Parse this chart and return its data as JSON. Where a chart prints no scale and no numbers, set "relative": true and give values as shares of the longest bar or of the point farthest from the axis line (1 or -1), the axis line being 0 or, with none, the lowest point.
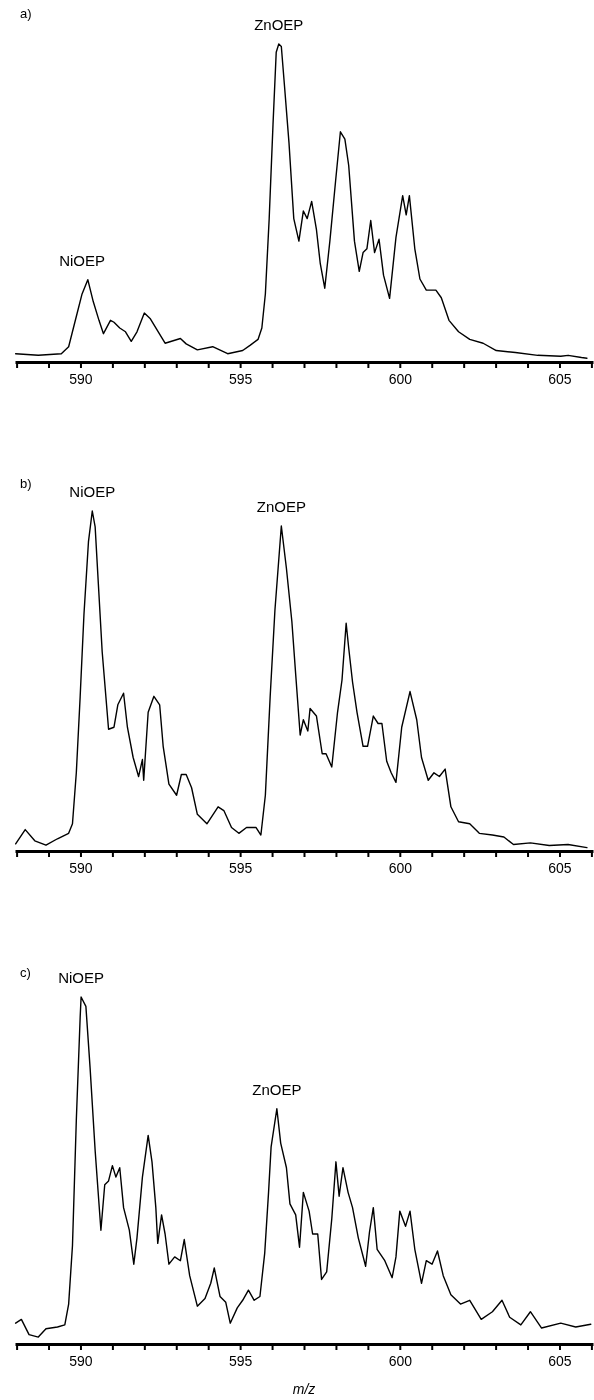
{
  "chart_data": [
    {
      "type": "line",
      "title": "a)",
      "relative": true,
      "color": "#000000",
      "xlim": [
        587.95,
        606.05
      ],
      "xticks": [
        {
          "value": 588,
          "label": null
        },
        {
          "value": 589,
          "label": null
        },
        590,
        {
          "value": 591,
          "label": null
        },
        {
          "value": 592,
          "label": null
        },
        {
          "value": 593,
          "label": null
        },
        {
          "value": 594,
          "label": null
        },
        595,
        {
          "value": 596,
          "label": null
        },
        {
          "value": 597,
          "label": null
        },
        {
          "value": 598,
          "label": null
        },
        {
          "value": 599,
          "label": null
        },
        600,
        {
          "value": 601,
          "label": null
        },
        {
          "value": 602,
          "label": null
        },
        {
          "value": 603,
          "label": null
        },
        {
          "value": 604,
          "label": null
        },
        605,
        {
          "value": 606,
          "label": null
        }
      ],
      "annotations": [
        {
          "text": "NiOEP",
          "x": 590.05,
          "y": 0.259
        },
        {
          "text": "ZnOEP",
          "x": 596.21,
          "y": 1
        }
      ],
      "x": [
        587.97,
        588.68,
        589.4,
        589.63,
        589.87,
        590.05,
        590.23,
        590.4,
        590.58,
        590.72,
        590.94,
        591.05,
        591.23,
        591.41,
        591.59,
        591.77,
        592.0,
        592.18,
        592.36,
        592.65,
        593.13,
        593.31,
        593.66,
        594.14,
        594.61,
        595.08,
        595.32,
        595.56,
        595.68,
        595.79,
        595.91,
        596.03,
        596.13,
        596.21,
        596.29,
        596.39,
        596.53,
        596.68,
        596.84,
        596.98,
        597.1,
        597.24,
        597.39,
        597.51,
        597.65,
        597.81,
        597.99,
        598.14,
        598.28,
        598.4,
        598.58,
        598.73,
        598.85,
        598.97,
        599.09,
        599.21,
        599.35,
        599.49,
        599.68,
        599.88,
        600.09,
        600.2,
        600.3,
        600.47,
        600.63,
        600.83,
        601.13,
        601.3,
        601.54,
        601.84,
        602.19,
        602.61,
        603.02,
        603.62,
        604.32,
        605.04,
        605.27,
        605.69,
        605.86
      ],
      "values": [
        0.026,
        0.021,
        0.026,
        0.048,
        0.143,
        0.214,
        0.259,
        0.19,
        0.131,
        0.089,
        0.131,
        0.125,
        0.107,
        0.095,
        0.065,
        0.095,
        0.154,
        0.137,
        0.107,
        0.059,
        0.074,
        0.057,
        0.038,
        0.048,
        0.026,
        0.036,
        0.053,
        0.071,
        0.107,
        0.214,
        0.451,
        0.748,
        0.974,
        1,
        0.992,
        0.867,
        0.689,
        0.451,
        0.38,
        0.475,
        0.451,
        0.505,
        0.416,
        0.309,
        0.232,
        0.38,
        0.57,
        0.724,
        0.701,
        0.618,
        0.38,
        0.285,
        0.344,
        0.356,
        0.445,
        0.344,
        0.386,
        0.273,
        0.2,
        0.392,
        0.523,
        0.463,
        0.523,
        0.356,
        0.261,
        0.226,
        0.226,
        0.202,
        0.131,
        0.095,
        0.071,
        0.059,
        0.036,
        0.03,
        0.021,
        0.018,
        0.021,
        0.014,
        0.012
      ]
    },
    {
      "type": "line",
      "title": "b)",
      "relative": true,
      "color": "#000000",
      "xlim": [
        587.95,
        606.05
      ],
      "xticks": [
        {
          "value": 588,
          "label": null
        },
        {
          "value": 589,
          "label": null
        },
        590,
        {
          "value": 591,
          "label": null
        },
        {
          "value": 592,
          "label": null
        },
        {
          "value": 593,
          "label": null
        },
        {
          "value": 594,
          "label": null
        },
        595,
        {
          "value": 596,
          "label": null
        },
        {
          "value": 597,
          "label": null
        },
        {
          "value": 598,
          "label": null
        },
        {
          "value": 599,
          "label": null
        },
        600,
        {
          "value": 601,
          "label": null
        },
        {
          "value": 602,
          "label": null
        },
        {
          "value": 603,
          "label": null
        },
        {
          "value": 604,
          "label": null
        },
        605,
        {
          "value": 606,
          "label": null
        }
      ],
      "annotations": [
        {
          "text": "NiOEP",
          "x": 590.37,
          "y": 1
        },
        {
          "text": "ZnOEP",
          "x": 596.29,
          "y": 0.956
        }
      ],
      "x": [
        587.97,
        588.27,
        588.57,
        588.92,
        589.28,
        589.63,
        589.75,
        589.87,
        589.99,
        590.11,
        590.25,
        590.37,
        590.46,
        590.56,
        590.68,
        590.88,
        591.05,
        591.17,
        591.35,
        591.47,
        591.65,
        591.82,
        591.94,
        591.98,
        592.12,
        592.3,
        592.48,
        592.59,
        592.77,
        593.01,
        593.16,
        593.31,
        593.48,
        593.66,
        593.96,
        594.31,
        594.49,
        594.73,
        594.96,
        595.2,
        595.5,
        595.65,
        595.79,
        595.94,
        596.09,
        596.29,
        596.45,
        596.62,
        596.74,
        596.88,
        596.98,
        597.12,
        597.19,
        597.39,
        597.57,
        597.69,
        597.87,
        598.05,
        598.19,
        598.32,
        598.4,
        598.52,
        598.66,
        598.85,
        598.99,
        599.17,
        599.32,
        599.44,
        599.59,
        599.73,
        599.88,
        600.06,
        600.32,
        600.53,
        600.68,
        600.89,
        601.07,
        601.24,
        601.42,
        601.6,
        601.84,
        602.19,
        602.49,
        602.9,
        603.26,
        603.56,
        604.09,
        604.68,
        605.27,
        605.86
      ],
      "values": [
        0.021,
        0.063,
        0.03,
        0.017,
        0.036,
        0.052,
        0.08,
        0.23,
        0.453,
        0.697,
        0.909,
        1,
        0.953,
        0.786,
        0.586,
        0.358,
        0.364,
        0.43,
        0.464,
        0.364,
        0.275,
        0.219,
        0.269,
        0.208,
        0.408,
        0.455,
        0.43,
        0.308,
        0.197,
        0.164,
        0.225,
        0.225,
        0.186,
        0.108,
        0.08,
        0.13,
        0.119,
        0.069,
        0.052,
        0.069,
        0.069,
        0.047,
        0.164,
        0.453,
        0.709,
        0.956,
        0.831,
        0.675,
        0.519,
        0.341,
        0.386,
        0.353,
        0.419,
        0.397,
        0.286,
        0.286,
        0.247,
        0.408,
        0.503,
        0.67,
        0.597,
        0.497,
        0.408,
        0.308,
        0.308,
        0.397,
        0.375,
        0.375,
        0.264,
        0.23,
        0.202,
        0.364,
        0.469,
        0.386,
        0.275,
        0.208,
        0.23,
        0.219,
        0.241,
        0.13,
        0.086,
        0.08,
        0.052,
        0.047,
        0.041,
        0.019,
        0.024,
        0.016,
        0.019,
        0.01
      ]
    },
    {
      "type": "line",
      "title": "c)",
      "xlabel": "m/z",
      "relative": true,
      "color": "#000000",
      "xlim": [
        587.95,
        606.05
      ],
      "xticks": [
        {
          "value": 588,
          "label": null
        },
        {
          "value": 589,
          "label": null
        },
        590,
        {
          "value": 591,
          "label": null
        },
        {
          "value": 592,
          "label": null
        },
        {
          "value": 593,
          "label": null
        },
        {
          "value": 594,
          "label": null
        },
        595,
        {
          "value": 596,
          "label": null
        },
        {
          "value": 597,
          "label": null
        },
        {
          "value": 598,
          "label": null
        },
        {
          "value": 599,
          "label": null
        },
        600,
        {
          "value": 601,
          "label": null
        },
        {
          "value": 602,
          "label": null
        },
        {
          "value": 603,
          "label": null
        },
        {
          "value": 604,
          "label": null
        },
        605,
        {
          "value": 606,
          "label": null
        }
      ],
      "annotations": [
        {
          "text": "NiOEP",
          "x": 590.02,
          "y": 1
        },
        {
          "text": "ZnOEP",
          "x": 596.15,
          "y": 0.678
        }
      ],
      "x": [
        587.97,
        588.15,
        588.39,
        588.68,
        588.92,
        589.28,
        589.51,
        589.63,
        589.75,
        589.87,
        589.99,
        590.02,
        590.17,
        590.3,
        590.46,
        590.64,
        590.76,
        590.88,
        591.0,
        591.11,
        591.23,
        591.35,
        591.53,
        591.67,
        591.77,
        591.94,
        592.12,
        592.24,
        592.36,
        592.42,
        592.54,
        592.65,
        592.77,
        592.95,
        593.13,
        593.25,
        593.42,
        593.66,
        593.9,
        594.08,
        594.19,
        594.37,
        594.55,
        594.69,
        594.91,
        595.08,
        595.26,
        595.44,
        595.62,
        595.77,
        595.89,
        595.97,
        596.15,
        596.27,
        596.45,
        596.56,
        596.74,
        596.86,
        596.98,
        597.16,
        597.27,
        597.43,
        597.55,
        597.71,
        597.87,
        598.0,
        598.1,
        598.22,
        598.38,
        598.52,
        598.7,
        598.93,
        599.05,
        599.17,
        599.29,
        599.53,
        599.76,
        599.88,
        600.0,
        600.18,
        600.32,
        600.47,
        600.68,
        600.83,
        601.01,
        601.18,
        601.36,
        601.6,
        601.9,
        602.19,
        602.55,
        602.9,
        603.2,
        603.44,
        603.79,
        604.09,
        604.44,
        605.04,
        605.51,
        605.98
      ],
      "values": [
        0.06,
        0.071,
        0.027,
        0.02,
        0.044,
        0.049,
        0.055,
        0.115,
        0.284,
        0.645,
        0.94,
        1,
        0.973,
        0.798,
        0.557,
        0.328,
        0.459,
        0.47,
        0.514,
        0.481,
        0.508,
        0.393,
        0.328,
        0.23,
        0.306,
        0.481,
        0.601,
        0.525,
        0.393,
        0.29,
        0.372,
        0.317,
        0.23,
        0.251,
        0.24,
        0.301,
        0.197,
        0.109,
        0.131,
        0.175,
        0.219,
        0.137,
        0.12,
        0.06,
        0.104,
        0.126,
        0.155,
        0.126,
        0.137,
        0.262,
        0.437,
        0.568,
        0.678,
        0.579,
        0.508,
        0.404,
        0.372,
        0.279,
        0.437,
        0.383,
        0.317,
        0.317,
        0.186,
        0.208,
        0.361,
        0.525,
        0.426,
        0.508,
        0.437,
        0.393,
        0.306,
        0.224,
        0.322,
        0.393,
        0.273,
        0.24,
        0.191,
        0.251,
        0.383,
        0.339,
        0.383,
        0.273,
        0.175,
        0.24,
        0.23,
        0.268,
        0.197,
        0.142,
        0.115,
        0.126,
        0.071,
        0.093,
        0.126,
        0.077,
        0.055,
        0.093,
        0.046,
        0.06,
        0.049,
        0.057
      ]
    }
  ]
}
